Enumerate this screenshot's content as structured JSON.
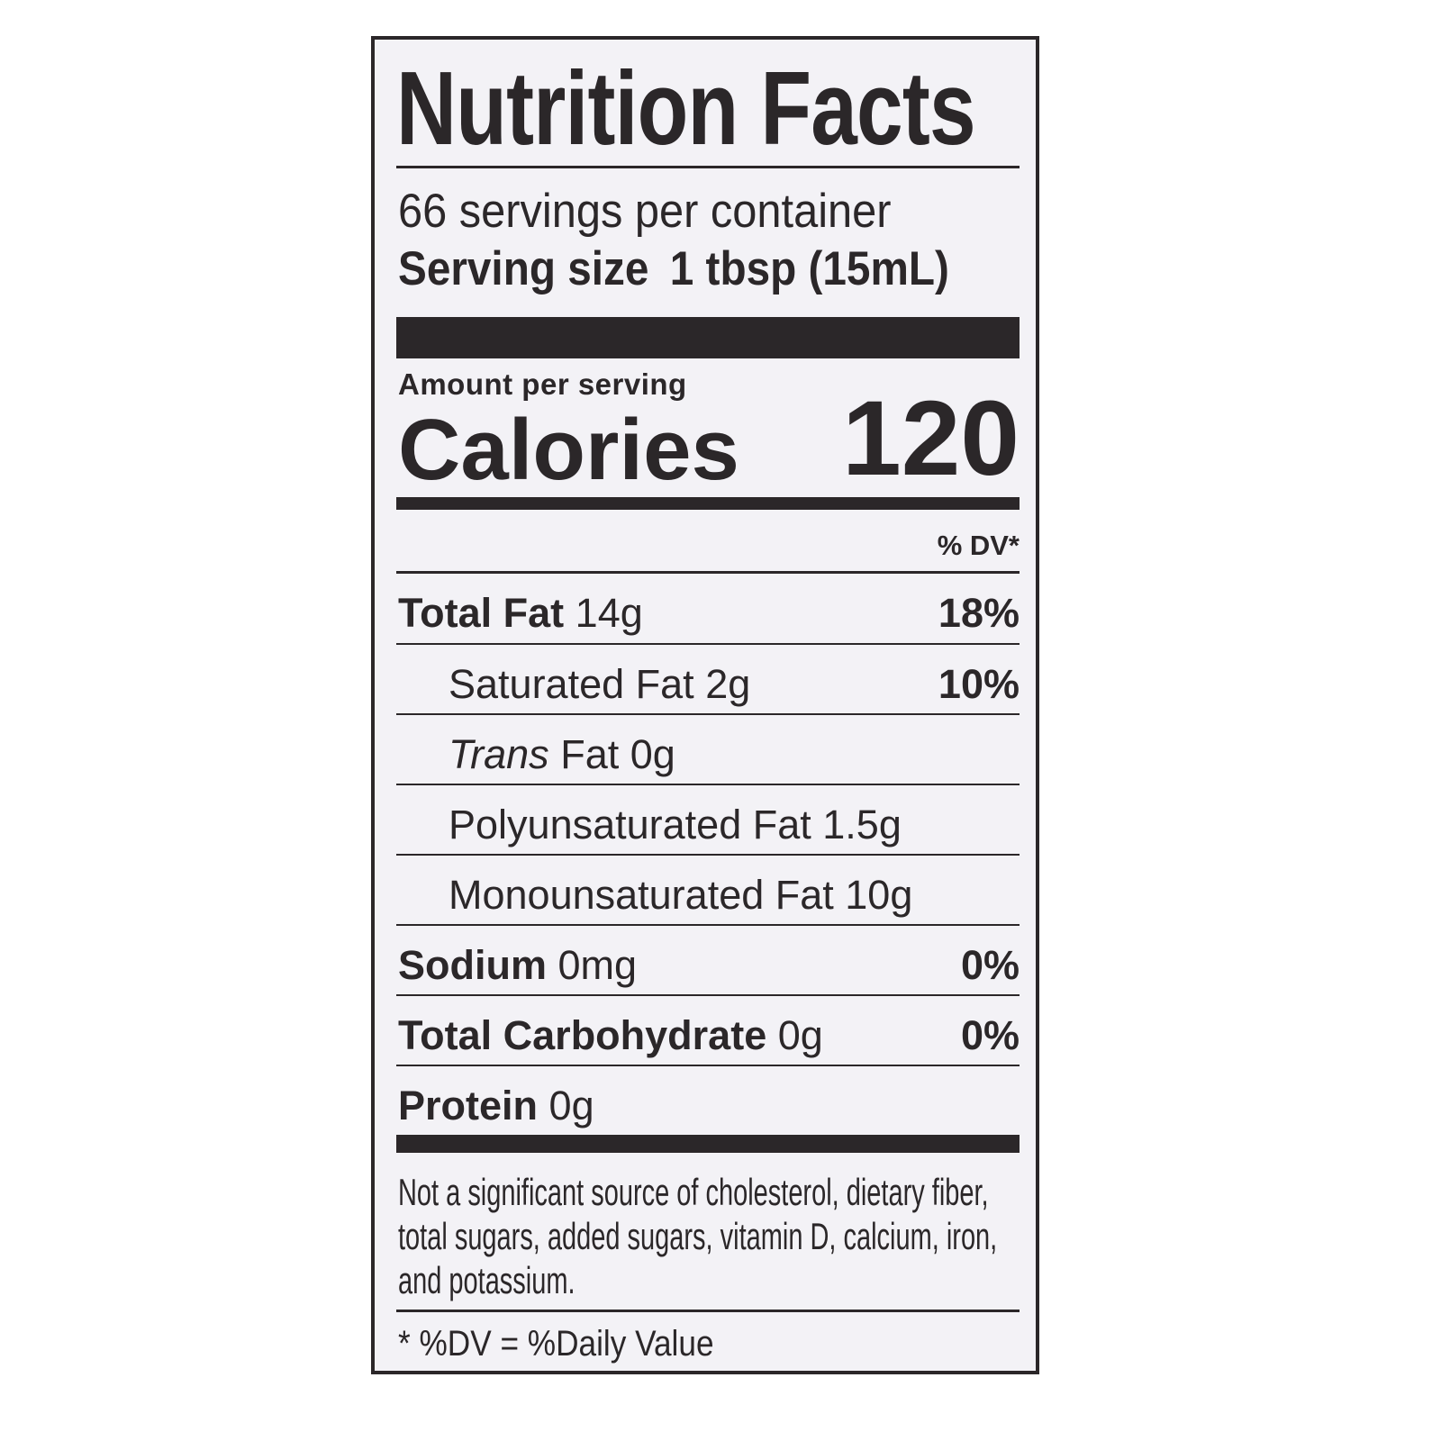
{
  "label": {
    "title": "Nutrition Facts",
    "servings_per_container": "66 servings per container",
    "serving_size_label": "Serving size",
    "serving_size_value": "1 tbsp (15mL)",
    "amount_per_serving": "Amount per serving",
    "calories_label": "Calories",
    "calories_value": "120",
    "dv_header": "% DV*",
    "rows": [
      {
        "name": "Total Fat",
        "amount": "14g",
        "dv": "18%"
      },
      {
        "name": "Saturated Fat",
        "amount": "2g",
        "dv": "10%"
      },
      {
        "name": "Trans",
        "amount": "Fat 0g",
        "dv": ""
      },
      {
        "name": "Polyunsaturated Fat",
        "amount": "1.5g",
        "dv": ""
      },
      {
        "name": "Monounsaturated Fat",
        "amount": "10g",
        "dv": ""
      },
      {
        "name": "Sodium",
        "amount": "0mg",
        "dv": "0%"
      },
      {
        "name": "Total Carbohydrate",
        "amount": "0g",
        "dv": "0%"
      },
      {
        "name": "Protein",
        "amount": "0g",
        "dv": ""
      }
    ],
    "footnote": "Not a significant source of cholesterol, dietary fiber, total sugars, added sugars, vitamin D, calcium, iron, and potassium.",
    "dv_note": "* %DV = %Daily Value"
  },
  "colors": {
    "ink": "#2b2729",
    "paper": "#f3f2f6"
  }
}
